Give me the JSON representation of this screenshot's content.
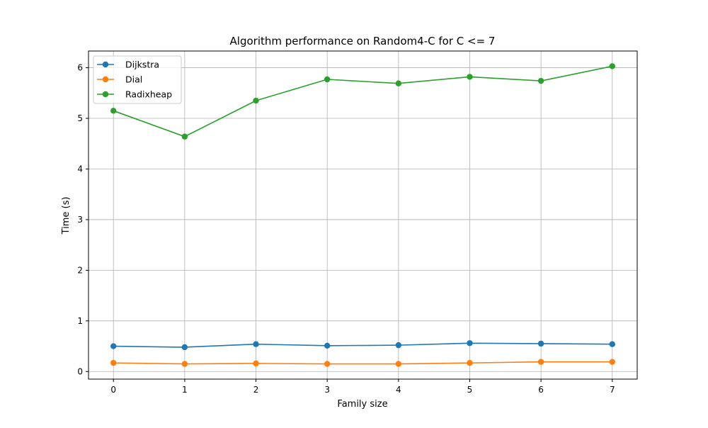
{
  "chart_data": {
    "type": "line",
    "title": "Algorithm performance on Random4-C for C <= 7",
    "xlabel": "Family size",
    "ylabel": "Time (s)",
    "x": [
      0,
      1,
      2,
      3,
      4,
      5,
      6,
      7
    ],
    "xlim": [
      -0.35,
      7.35
    ],
    "ylim": [
      -0.15,
      6.33
    ],
    "xticks": [
      0,
      1,
      2,
      3,
      4,
      5,
      6,
      7
    ],
    "yticks": [
      0,
      1,
      2,
      3,
      4,
      5,
      6
    ],
    "grid": true,
    "legend_position": "top-left",
    "series": [
      {
        "name": "Dijkstra",
        "color": "#1f77b4",
        "values": [
          0.5,
          0.48,
          0.54,
          0.51,
          0.52,
          0.56,
          0.55,
          0.54
        ]
      },
      {
        "name": "Dial",
        "color": "#ff7f0e",
        "values": [
          0.17,
          0.15,
          0.16,
          0.15,
          0.15,
          0.17,
          0.19,
          0.19
        ]
      },
      {
        "name": "Radixheap",
        "color": "#2ca02c",
        "values": [
          5.15,
          4.64,
          5.35,
          5.77,
          5.69,
          5.82,
          5.74,
          6.03
        ]
      }
    ]
  }
}
